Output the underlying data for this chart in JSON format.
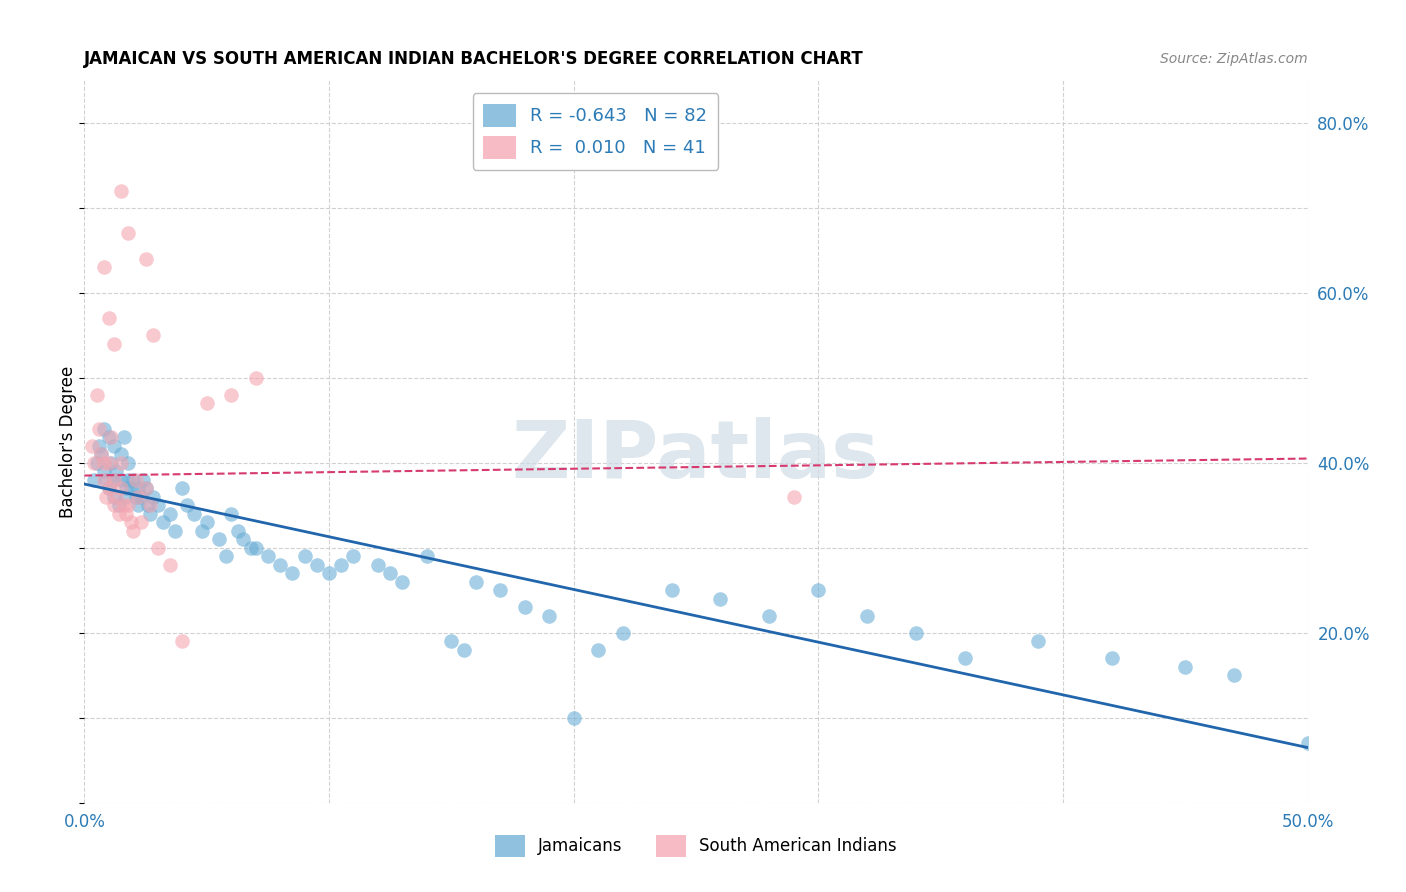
{
  "title": "JAMAICAN VS SOUTH AMERICAN INDIAN BACHELOR'S DEGREE CORRELATION CHART",
  "source": "Source: ZipAtlas.com",
  "ylabel": "Bachelor's Degree",
  "xlim": [
    0.0,
    0.5
  ],
  "ylim": [
    0.0,
    0.85
  ],
  "x_ticks": [
    0.0,
    0.1,
    0.2,
    0.3,
    0.4,
    0.5
  ],
  "x_tick_labels": [
    "0.0%",
    "",
    "",
    "",
    "",
    "50.0%"
  ],
  "y_ticks_right": [
    0.0,
    0.2,
    0.4,
    0.6,
    0.8
  ],
  "y_tick_labels_right": [
    "",
    "20.0%",
    "40.0%",
    "60.0%",
    "80.0%"
  ],
  "blue_R": "-0.643",
  "blue_N": "82",
  "pink_R": "0.010",
  "pink_N": "41",
  "blue_color": "#6baed6",
  "pink_color": "#f4a5b0",
  "blue_line_color": "#2166ac",
  "pink_line_color": "#d63a6e",
  "watermark": "ZIPatlas",
  "legend_jamaicans": "Jamaicans",
  "legend_sai": "South American Indians",
  "jamaican_x": [
    0.004,
    0.005,
    0.006,
    0.007,
    0.008,
    0.009,
    0.01,
    0.01,
    0.011,
    0.012,
    0.012,
    0.013,
    0.014,
    0.015,
    0.015,
    0.016,
    0.017,
    0.017,
    0.018,
    0.018,
    0.019,
    0.02,
    0.021,
    0.022,
    0.022,
    0.023,
    0.024,
    0.025,
    0.026,
    0.027,
    0.028,
    0.03,
    0.032,
    0.035,
    0.037,
    0.04,
    0.042,
    0.045,
    0.048,
    0.05,
    0.055,
    0.058,
    0.06,
    0.063,
    0.065,
    0.068,
    0.07,
    0.075,
    0.08,
    0.085,
    0.09,
    0.095,
    0.1,
    0.105,
    0.11,
    0.12,
    0.125,
    0.13,
    0.14,
    0.15,
    0.155,
    0.16,
    0.17,
    0.18,
    0.19,
    0.2,
    0.21,
    0.22,
    0.24,
    0.26,
    0.28,
    0.3,
    0.32,
    0.34,
    0.36,
    0.39,
    0.42,
    0.45,
    0.47,
    0.5,
    0.008,
    0.012
  ],
  "jamaican_y": [
    0.38,
    0.4,
    0.42,
    0.41,
    0.39,
    0.38,
    0.43,
    0.37,
    0.4,
    0.38,
    0.36,
    0.39,
    0.35,
    0.41,
    0.38,
    0.43,
    0.37,
    0.36,
    0.4,
    0.38,
    0.37,
    0.38,
    0.36,
    0.35,
    0.37,
    0.36,
    0.38,
    0.37,
    0.35,
    0.34,
    0.36,
    0.35,
    0.33,
    0.34,
    0.32,
    0.37,
    0.35,
    0.34,
    0.32,
    0.33,
    0.31,
    0.29,
    0.34,
    0.32,
    0.31,
    0.3,
    0.3,
    0.29,
    0.28,
    0.27,
    0.29,
    0.28,
    0.27,
    0.28,
    0.29,
    0.28,
    0.27,
    0.26,
    0.29,
    0.19,
    0.18,
    0.26,
    0.25,
    0.23,
    0.22,
    0.1,
    0.18,
    0.2,
    0.25,
    0.24,
    0.22,
    0.25,
    0.22,
    0.2,
    0.17,
    0.19,
    0.17,
    0.16,
    0.15,
    0.07,
    0.44,
    0.42
  ],
  "sai_x": [
    0.003,
    0.004,
    0.005,
    0.006,
    0.007,
    0.008,
    0.008,
    0.009,
    0.01,
    0.01,
    0.011,
    0.012,
    0.012,
    0.013,
    0.014,
    0.015,
    0.015,
    0.016,
    0.017,
    0.018,
    0.019,
    0.02,
    0.021,
    0.022,
    0.023,
    0.025,
    0.027,
    0.03,
    0.035,
    0.04,
    0.008,
    0.01,
    0.012,
    0.015,
    0.018,
    0.025,
    0.028,
    0.05,
    0.07,
    0.29,
    0.06
  ],
  "sai_y": [
    0.42,
    0.4,
    0.48,
    0.44,
    0.41,
    0.38,
    0.4,
    0.36,
    0.37,
    0.4,
    0.43,
    0.38,
    0.35,
    0.36,
    0.34,
    0.37,
    0.4,
    0.35,
    0.34,
    0.35,
    0.33,
    0.32,
    0.38,
    0.36,
    0.33,
    0.37,
    0.35,
    0.3,
    0.28,
    0.19,
    0.63,
    0.57,
    0.54,
    0.72,
    0.67,
    0.64,
    0.55,
    0.47,
    0.5,
    0.36,
    0.48
  ],
  "blue_line_x0": 0.0,
  "blue_line_x1": 0.5,
  "blue_line_y0": 0.375,
  "blue_line_y1": 0.065,
  "pink_line_x0": 0.0,
  "pink_line_x1": 0.5,
  "pink_line_y0": 0.385,
  "pink_line_y1": 0.405
}
